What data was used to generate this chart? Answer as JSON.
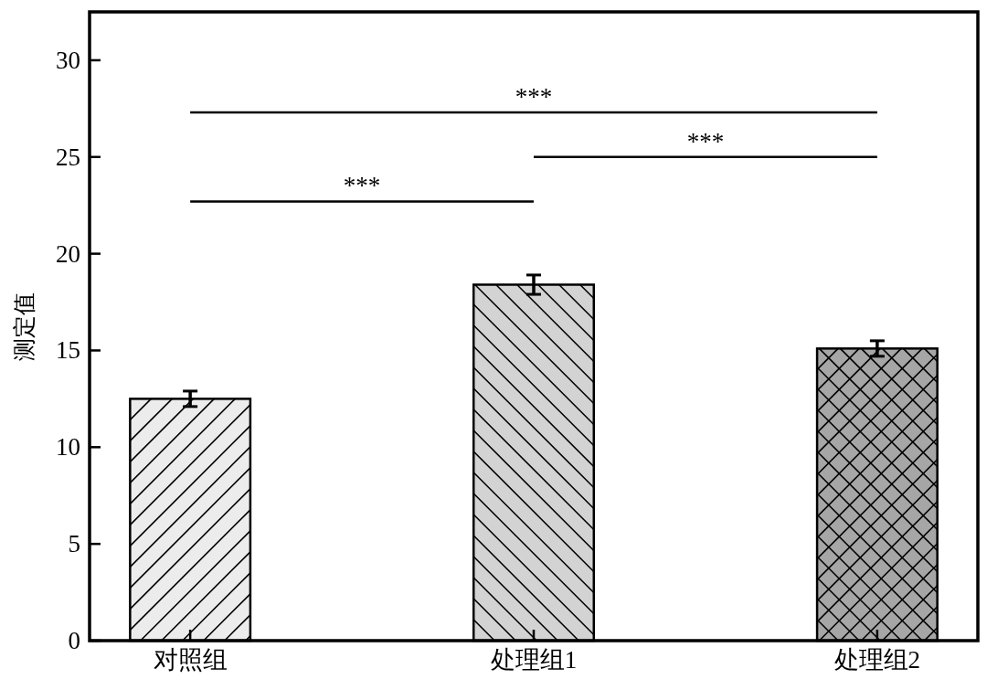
{
  "chart_data": {
    "type": "bar",
    "ylabel": "测定值",
    "categories": [
      "对照组",
      "处理组1",
      "处理组2"
    ],
    "values": [
      12.5,
      18.4,
      15.1
    ],
    "colors": [
      "#ececec",
      "#d3d3d3",
      "#a6a6a6"
    ],
    "errors": [
      0.4,
      0.5,
      0.4
    ],
    "ylim": [
      0,
      32.5
    ],
    "yticks": [
      0,
      5,
      10,
      15,
      20,
      25,
      30
    ],
    "annotations": [
      "***",
      "***",
      "***"
    ]
  }
}
